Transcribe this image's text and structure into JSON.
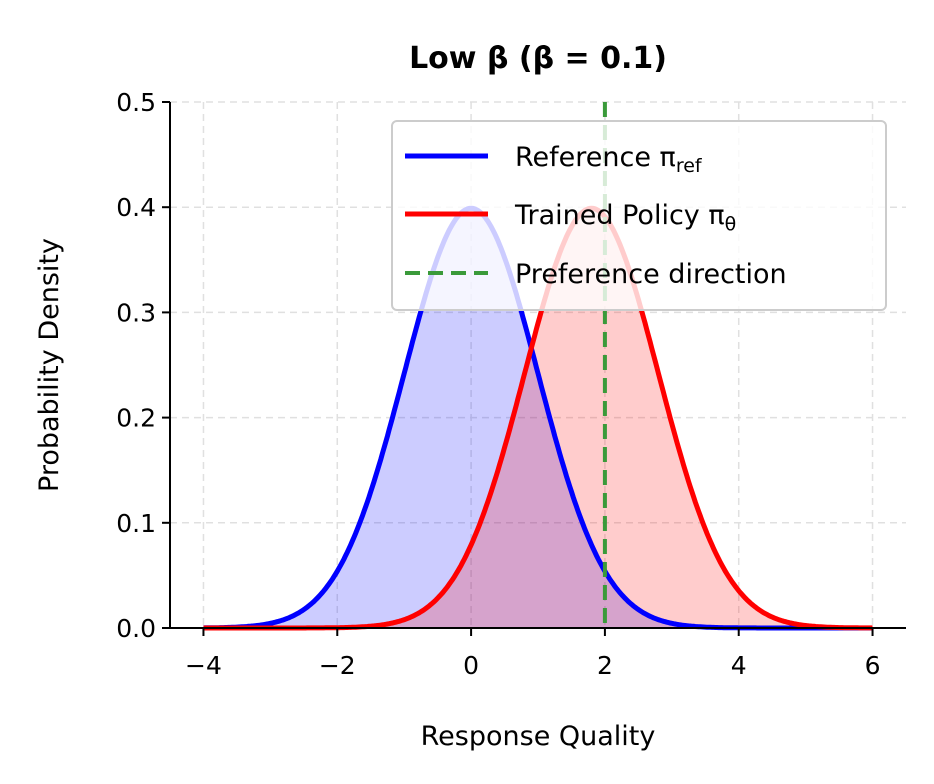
{
  "chart_data": {
    "type": "line",
    "title": "Low β (β = 0.1)",
    "xlabel": "Response Quality",
    "ylabel": "Probability Density",
    "xlim": [
      -4.5,
      6.5
    ],
    "ylim": [
      0,
      0.5
    ],
    "xticks": [
      -4,
      -2,
      0,
      2,
      4,
      6
    ],
    "xtick_labels": [
      "−4",
      "−2",
      "0",
      "2",
      "4",
      "6"
    ],
    "yticks": [
      0,
      0.1,
      0.2,
      0.3,
      0.4,
      0.5
    ],
    "ytick_labels": [
      "0.0",
      "0.1",
      "0.2",
      "0.3",
      "0.4",
      "0.5"
    ],
    "grid": true,
    "legend_position": "top-right",
    "x_range": [
      -4,
      6
    ],
    "series": [
      {
        "name": "Reference π_ref",
        "label_main": "Reference π",
        "label_sub": "ref",
        "kind": "normal",
        "mean": 0,
        "std": 1,
        "color": "#0000ff",
        "filled": true
      },
      {
        "name": "Trained Policy π_θ",
        "label_main": "Trained Policy π",
        "label_sub": "θ",
        "kind": "normal",
        "mean": 1.8,
        "std": 1,
        "color": "#ff0000",
        "filled": true
      }
    ],
    "vlines": [
      {
        "name": "Preference direction",
        "x": 2,
        "color": "#3a9a3a",
        "style": "dashed"
      }
    ]
  }
}
